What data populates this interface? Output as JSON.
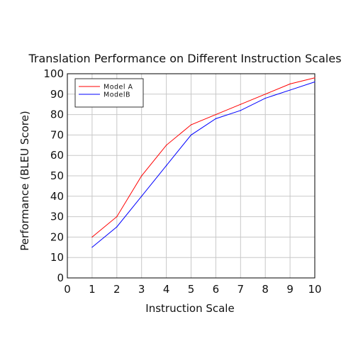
{
  "chart_data": {
    "type": "line",
    "title": "Translation Performance on Different Instruction Scales",
    "xlabel": "Instruction Scale",
    "ylabel": "Performance (BLEU Score)",
    "x": [
      1,
      2,
      3,
      4,
      5,
      6,
      7,
      8,
      9,
      10
    ],
    "xlim": [
      0,
      10
    ],
    "xticks": [
      "0",
      "1",
      "2",
      "3",
      "4",
      "5",
      "6",
      "7",
      "8",
      "9",
      "10"
    ],
    "xtick_values": [
      0,
      1,
      2,
      3,
      4,
      5,
      6,
      7,
      8,
      9,
      10
    ],
    "ylim": [
      0,
      100
    ],
    "yticks": [
      "0",
      "10",
      "20",
      "30",
      "40",
      "50",
      "60",
      "70",
      "80",
      "90",
      "100"
    ],
    "ytick_values": [
      0,
      10,
      20,
      30,
      40,
      50,
      60,
      70,
      80,
      90,
      100
    ],
    "grid": true,
    "legend_position": "top-left",
    "series": [
      {
        "name": "Model A",
        "color": "#ff0000",
        "values": [
          20,
          30,
          50,
          65,
          75,
          80,
          85,
          90,
          95,
          98
        ]
      },
      {
        "name": "ModelB",
        "color": "#0000ff",
        "values": [
          15,
          25,
          40,
          55,
          70,
          78,
          82,
          88,
          92,
          96
        ]
      }
    ]
  }
}
